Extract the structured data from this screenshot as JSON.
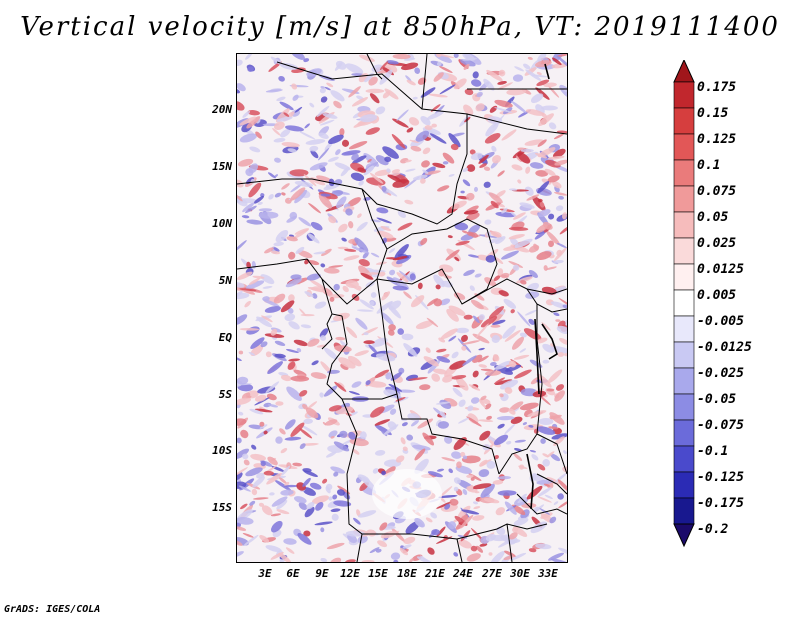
{
  "title": "Vertical velocity [m/s] at 850hPa, VT: 2019111400",
  "footer": "GrADS: IGES/COLA",
  "map": {
    "lat_labels": [
      "20N",
      "15N",
      "10N",
      "5N",
      "EQ",
      "5S",
      "10S",
      "15S"
    ],
    "lon_labels": [
      "3E",
      "6E",
      "9E",
      "12E",
      "15E",
      "18E",
      "21E",
      "24E",
      "27E",
      "30E",
      "33E"
    ],
    "lat_range": [
      -20,
      25
    ],
    "lon_range": [
      0,
      35
    ]
  },
  "colorbar": {
    "labels": [
      "0.175",
      "0.15",
      "0.125",
      "0.1",
      "0.075",
      "0.05",
      "0.025",
      "0.0125",
      "0.005",
      "-0.005",
      "-0.0125",
      "-0.025",
      "-0.05",
      "-0.075",
      "-0.1",
      "-0.125",
      "-0.175",
      "-0.2"
    ],
    "colors": [
      "#a0161b",
      "#c1272d",
      "#d63e3e",
      "#e25757",
      "#ea7b7b",
      "#f09a9a",
      "#f6bcbc",
      "#fadada",
      "#fff0f0",
      "#ffffff",
      "#e8e8fb",
      "#c9c9f3",
      "#a9a9ec",
      "#8c8ce4",
      "#6b6bda",
      "#4a4acc",
      "#2b2bb5",
      "#18188f",
      "#1b0a6a"
    ]
  }
}
